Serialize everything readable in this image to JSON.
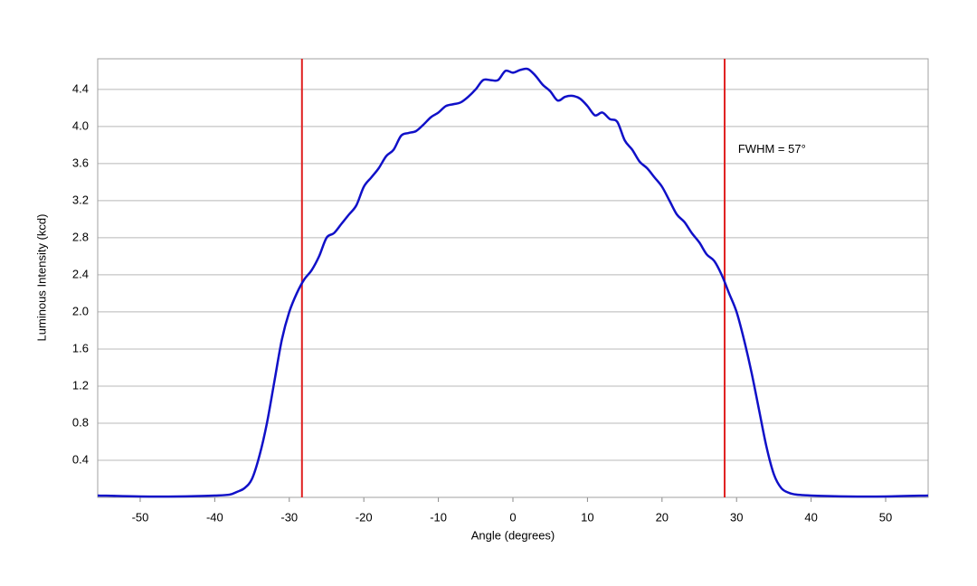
{
  "chart_data": {
    "type": "line",
    "x_label": "Angle (degrees)",
    "y_label": "Luminous Intensity (kcd)",
    "annotation": {
      "text": "FWHM = 57°",
      "x": 30.2,
      "y": 3.75
    },
    "xlim": [
      -55.7,
      55.7
    ],
    "ylim": [
      0,
      4.73
    ],
    "xticks": [
      -50,
      -40,
      -30,
      -20,
      -10,
      0,
      10,
      20,
      30,
      40,
      50
    ],
    "yticks": [
      0.4,
      0.8,
      1.2,
      1.6,
      {
        "value": 2,
        "label": "2.0"
      },
      2.4,
      2.8,
      3.2,
      3.6,
      {
        "value": 4,
        "label": "4.0"
      },
      4.4
    ],
    "grid": true,
    "vlines": [
      {
        "x": -28.3,
        "color": "#e02020"
      },
      {
        "x": 28.4,
        "color": "#e02020"
      }
    ],
    "x": [
      -55.7,
      -50,
      -45,
      -40,
      -38,
      -37,
      -36,
      -35,
      -34,
      -33,
      -32,
      -31,
      -30,
      -29,
      -28,
      -27,
      -26,
      -25,
      -24,
      -23,
      -22,
      -21,
      -20,
      -19,
      -18,
      -17,
      -16,
      -15,
      -14,
      -13,
      -12,
      -11,
      -10,
      -9,
      -8,
      -7,
      -6,
      -5,
      -4,
      -3,
      -2,
      -1,
      0,
      1,
      2,
      3,
      4,
      5,
      6,
      7,
      8,
      9,
      10,
      11,
      12,
      13,
      14,
      15,
      16,
      17,
      18,
      19,
      20,
      21,
      22,
      23,
      24,
      25,
      26,
      27,
      28,
      29,
      30,
      31,
      32,
      33,
      34,
      35,
      36,
      37,
      38,
      40,
      45,
      50,
      55.7
    ],
    "series": [
      {
        "color": "#1010c8",
        "values": [
          0.02,
          0.01,
          0.01,
          0.02,
          0.03,
          0.06,
          0.1,
          0.2,
          0.45,
          0.8,
          1.25,
          1.7,
          2.0,
          2.2,
          2.35,
          2.45,
          2.6,
          2.8,
          2.85,
          2.95,
          3.05,
          3.15,
          3.35,
          3.45,
          3.55,
          3.68,
          3.75,
          3.9,
          3.93,
          3.95,
          4.02,
          4.1,
          4.15,
          4.22,
          4.24,
          4.26,
          4.32,
          4.4,
          4.5,
          4.5,
          4.5,
          4.6,
          4.58,
          4.61,
          4.62,
          4.55,
          4.45,
          4.38,
          4.28,
          4.32,
          4.33,
          4.3,
          4.22,
          4.12,
          4.15,
          4.08,
          4.05,
          3.85,
          3.75,
          3.62,
          3.55,
          3.45,
          3.35,
          3.2,
          3.05,
          2.97,
          2.85,
          2.75,
          2.62,
          2.55,
          2.4,
          2.2,
          2.0,
          1.7,
          1.35,
          0.95,
          0.55,
          0.25,
          0.1,
          0.05,
          0.03,
          0.02,
          0.01,
          0.01,
          0.02
        ]
      }
    ]
  }
}
